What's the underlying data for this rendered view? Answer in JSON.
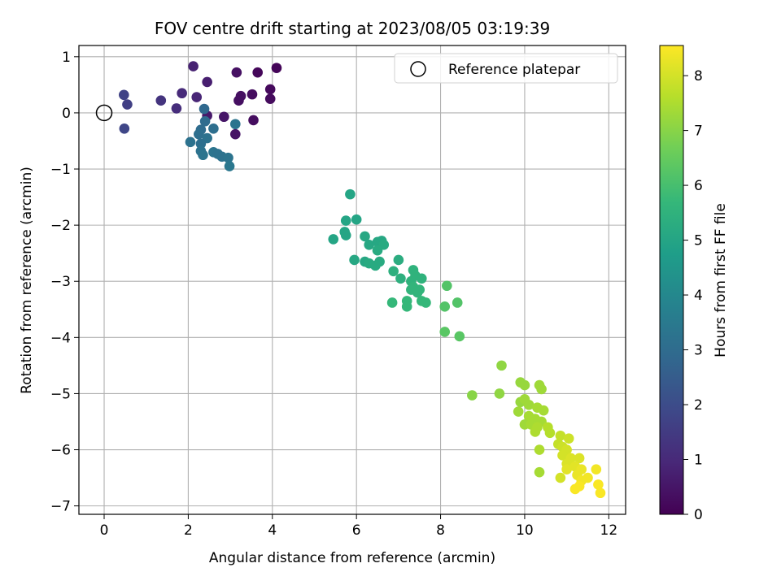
{
  "chart_data": {
    "type": "scatter",
    "title": "FOV centre drift starting at 2023/08/05 03:19:39",
    "xlabel": "Angular distance from reference (arcmin)",
    "ylabel": "Rotation from reference (arcmin)",
    "xlim": [
      -0.6,
      12.4
    ],
    "ylim": [
      -7.15,
      1.2
    ],
    "xticks": [
      0,
      2,
      4,
      6,
      8,
      10,
      12
    ],
    "yticks": [
      1,
      0,
      -1,
      -2,
      -3,
      -4,
      -5,
      -6,
      -7
    ],
    "grid": true,
    "legend": {
      "placement": "top-right",
      "entries": [
        "Reference platepar"
      ]
    },
    "reference_point": {
      "x": 0,
      "y": 0,
      "marker": "open-circle"
    },
    "colorbar": {
      "label": "Hours from first FF file",
      "range": [
        0,
        8.55
      ],
      "ticks": [
        0,
        1,
        2,
        3,
        4,
        5,
        6,
        7,
        8
      ],
      "colormap": "viridis",
      "stops": [
        "#440154",
        "#482878",
        "#3e4989",
        "#31688e",
        "#26828e",
        "#1f9e89",
        "#35b779",
        "#6ece58",
        "#b5de2b",
        "#fde725"
      ]
    },
    "series": [
      {
        "points": [
          {
            "x": 4.1,
            "y": 0.8,
            "c": 0.1
          },
          {
            "x": 3.95,
            "y": 0.42,
            "c": 0.2
          },
          {
            "x": 3.95,
            "y": 0.25,
            "c": 0.25
          },
          {
            "x": 3.65,
            "y": 0.72,
            "c": 0.15
          },
          {
            "x": 3.55,
            "y": -0.13,
            "c": 0.3
          },
          {
            "x": 3.52,
            "y": 0.33,
            "c": 0.3
          },
          {
            "x": 3.25,
            "y": 0.3,
            "c": 0.35
          },
          {
            "x": 3.2,
            "y": 0.22,
            "c": 0.35
          },
          {
            "x": 3.15,
            "y": 0.72,
            "c": 0.4
          },
          {
            "x": 3.12,
            "y": -0.38,
            "c": 0.45
          },
          {
            "x": 2.85,
            "y": -0.07,
            "c": 0.5
          },
          {
            "x": 2.45,
            "y": -0.05,
            "c": 0.6
          },
          {
            "x": 2.45,
            "y": 0.55,
            "c": 0.7
          },
          {
            "x": 2.12,
            "y": 0.83,
            "c": 0.8
          },
          {
            "x": 2.2,
            "y": 0.28,
            "c": 0.9
          },
          {
            "x": 1.85,
            "y": 0.35,
            "c": 1.0
          },
          {
            "x": 1.72,
            "y": 0.08,
            "c": 1.1
          },
          {
            "x": 1.35,
            "y": 0.22,
            "c": 1.3
          },
          {
            "x": 0.55,
            "y": 0.15,
            "c": 1.6
          },
          {
            "x": 0.47,
            "y": 0.32,
            "c": 1.7
          },
          {
            "x": 0.48,
            "y": -0.28,
            "c": 1.8
          },
          {
            "x": 2.38,
            "y": 0.07,
            "c": 2.9
          },
          {
            "x": 2.4,
            "y": -0.15,
            "c": 3.0
          },
          {
            "x": 2.3,
            "y": -0.3,
            "c": 3.0
          },
          {
            "x": 2.25,
            "y": -0.38,
            "c": 3.1
          },
          {
            "x": 2.6,
            "y": -0.28,
            "c": 3.1
          },
          {
            "x": 2.45,
            "y": -0.45,
            "c": 3.2
          },
          {
            "x": 2.3,
            "y": -0.55,
            "c": 3.1
          },
          {
            "x": 2.05,
            "y": -0.52,
            "c": 3.2
          },
          {
            "x": 2.3,
            "y": -0.68,
            "c": 3.2
          },
          {
            "x": 2.35,
            "y": -0.75,
            "c": 3.3
          },
          {
            "x": 2.6,
            "y": -0.7,
            "c": 3.3
          },
          {
            "x": 2.7,
            "y": -0.73,
            "c": 3.2
          },
          {
            "x": 2.8,
            "y": -0.78,
            "c": 3.2
          },
          {
            "x": 2.95,
            "y": -0.8,
            "c": 3.3
          },
          {
            "x": 2.98,
            "y": -0.95,
            "c": 3.4
          },
          {
            "x": 3.12,
            "y": -0.2,
            "c": 3.3
          },
          {
            "x": 5.85,
            "y": -1.45,
            "c": 5.0
          },
          {
            "x": 5.75,
            "y": -1.92,
            "c": 5.0
          },
          {
            "x": 6.0,
            "y": -1.9,
            "c": 5.0
          },
          {
            "x": 5.72,
            "y": -2.12,
            "c": 5.0
          },
          {
            "x": 5.75,
            "y": -2.18,
            "c": 5.0
          },
          {
            "x": 5.45,
            "y": -2.25,
            "c": 5.0
          },
          {
            "x": 6.2,
            "y": -2.2,
            "c": 5.1
          },
          {
            "x": 6.3,
            "y": -2.35,
            "c": 5.1
          },
          {
            "x": 6.5,
            "y": -2.3,
            "c": 5.1
          },
          {
            "x": 6.6,
            "y": -2.28,
            "c": 5.1
          },
          {
            "x": 6.65,
            "y": -2.35,
            "c": 5.2
          },
          {
            "x": 6.5,
            "y": -2.45,
            "c": 5.2
          },
          {
            "x": 5.95,
            "y": -2.62,
            "c": 5.1
          },
          {
            "x": 6.2,
            "y": -2.65,
            "c": 5.1
          },
          {
            "x": 6.3,
            "y": -2.68,
            "c": 5.2
          },
          {
            "x": 6.45,
            "y": -2.72,
            "c": 5.2
          },
          {
            "x": 6.55,
            "y": -2.65,
            "c": 5.2
          },
          {
            "x": 7.0,
            "y": -2.62,
            "c": 5.3
          },
          {
            "x": 6.88,
            "y": -2.82,
            "c": 5.4
          },
          {
            "x": 7.05,
            "y": -2.95,
            "c": 5.4
          },
          {
            "x": 7.35,
            "y": -2.8,
            "c": 5.5
          },
          {
            "x": 7.4,
            "y": -2.9,
            "c": 5.5
          },
          {
            "x": 7.3,
            "y": -3.0,
            "c": 5.5
          },
          {
            "x": 7.55,
            "y": -2.95,
            "c": 5.5
          },
          {
            "x": 7.35,
            "y": -3.1,
            "c": 5.6
          },
          {
            "x": 7.5,
            "y": -3.15,
            "c": 5.6
          },
          {
            "x": 7.3,
            "y": -3.15,
            "c": 5.6
          },
          {
            "x": 7.45,
            "y": -3.2,
            "c": 5.6
          },
          {
            "x": 7.2,
            "y": -3.35,
            "c": 5.7
          },
          {
            "x": 6.85,
            "y": -3.38,
            "c": 5.7
          },
          {
            "x": 7.2,
            "y": -3.45,
            "c": 5.7
          },
          {
            "x": 7.55,
            "y": -3.35,
            "c": 5.7
          },
          {
            "x": 7.65,
            "y": -3.38,
            "c": 5.7
          },
          {
            "x": 8.15,
            "y": -3.08,
            "c": 6.2
          },
          {
            "x": 8.1,
            "y": -3.45,
            "c": 6.2
          },
          {
            "x": 8.4,
            "y": -3.38,
            "c": 6.2
          },
          {
            "x": 8.1,
            "y": -3.9,
            "c": 6.3
          },
          {
            "x": 8.45,
            "y": -3.98,
            "c": 6.3
          },
          {
            "x": 8.75,
            "y": -5.03,
            "c": 7.0
          },
          {
            "x": 9.45,
            "y": -4.5,
            "c": 7.1
          },
          {
            "x": 9.4,
            "y": -5.0,
            "c": 7.1
          },
          {
            "x": 9.9,
            "y": -4.8,
            "c": 7.2
          },
          {
            "x": 10.0,
            "y": -4.85,
            "c": 7.2
          },
          {
            "x": 10.35,
            "y": -4.85,
            "c": 7.3
          },
          {
            "x": 10.4,
            "y": -4.92,
            "c": 7.3
          },
          {
            "x": 9.9,
            "y": -5.15,
            "c": 7.2
          },
          {
            "x": 10.0,
            "y": -5.1,
            "c": 7.3
          },
          {
            "x": 10.1,
            "y": -5.2,
            "c": 7.3
          },
          {
            "x": 10.3,
            "y": -5.25,
            "c": 7.4
          },
          {
            "x": 10.45,
            "y": -5.3,
            "c": 7.4
          },
          {
            "x": 9.85,
            "y": -5.32,
            "c": 7.3
          },
          {
            "x": 10.1,
            "y": -5.4,
            "c": 7.4
          },
          {
            "x": 10.25,
            "y": -5.45,
            "c": 7.4
          },
          {
            "x": 10.4,
            "y": -5.5,
            "c": 7.4
          },
          {
            "x": 10.0,
            "y": -5.55,
            "c": 7.3
          },
          {
            "x": 10.15,
            "y": -5.55,
            "c": 7.4
          },
          {
            "x": 10.3,
            "y": -5.6,
            "c": 7.5
          },
          {
            "x": 10.25,
            "y": -5.68,
            "c": 7.5
          },
          {
            "x": 10.55,
            "y": -5.6,
            "c": 7.6
          },
          {
            "x": 10.6,
            "y": -5.7,
            "c": 7.6
          },
          {
            "x": 10.85,
            "y": -5.75,
            "c": 7.8
          },
          {
            "x": 11.05,
            "y": -5.8,
            "c": 7.9
          },
          {
            "x": 10.8,
            "y": -5.9,
            "c": 7.8
          },
          {
            "x": 10.9,
            "y": -5.95,
            "c": 7.9
          },
          {
            "x": 11.0,
            "y": -6.0,
            "c": 8.0
          },
          {
            "x": 10.35,
            "y": -6.0,
            "c": 7.5
          },
          {
            "x": 10.9,
            "y": -6.1,
            "c": 8.0
          },
          {
            "x": 11.1,
            "y": -6.15,
            "c": 8.1
          },
          {
            "x": 11.3,
            "y": -6.15,
            "c": 8.1
          },
          {
            "x": 11.0,
            "y": -6.25,
            "c": 8.1
          },
          {
            "x": 11.2,
            "y": -6.3,
            "c": 8.2
          },
          {
            "x": 11.0,
            "y": -6.35,
            "c": 8.2
          },
          {
            "x": 11.35,
            "y": -6.35,
            "c": 8.3
          },
          {
            "x": 11.7,
            "y": -6.35,
            "c": 8.4
          },
          {
            "x": 11.25,
            "y": -6.45,
            "c": 8.3
          },
          {
            "x": 11.5,
            "y": -6.5,
            "c": 8.4
          },
          {
            "x": 11.35,
            "y": -6.55,
            "c": 8.4
          },
          {
            "x": 10.85,
            "y": -6.5,
            "c": 8.0
          },
          {
            "x": 10.35,
            "y": -6.4,
            "c": 7.4
          },
          {
            "x": 11.3,
            "y": -6.65,
            "c": 8.5
          },
          {
            "x": 11.2,
            "y": -6.7,
            "c": 8.5
          },
          {
            "x": 11.75,
            "y": -6.62,
            "c": 8.5
          },
          {
            "x": 11.8,
            "y": -6.77,
            "c": 8.5
          }
        ]
      }
    ]
  }
}
